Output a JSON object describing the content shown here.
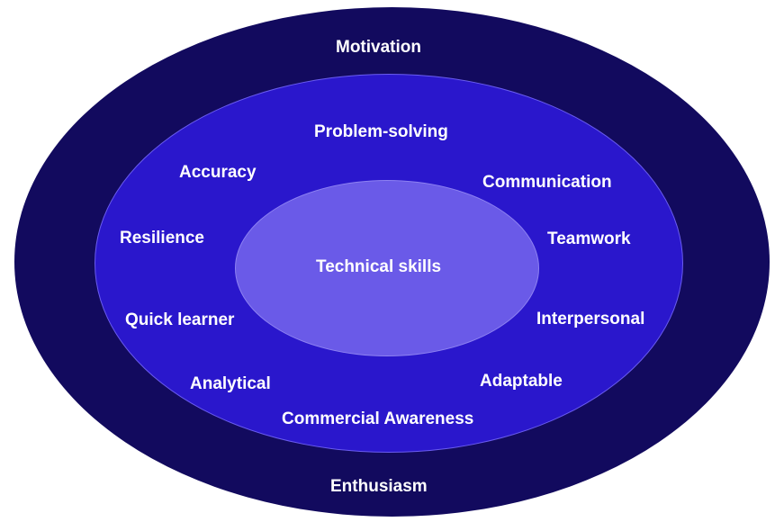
{
  "colors": {
    "outer_ring": "#120a5e",
    "middle_ring": "#2a17cc",
    "inner_core": "#6a5ae8",
    "text": "#ffffff"
  },
  "outer": {
    "top_label": "Motivation",
    "bottom_label": "Enthusiasm"
  },
  "middle": {
    "problem_solving": "Problem-solving",
    "accuracy": "Accuracy",
    "communication": "Communication",
    "resilience": "Resilience",
    "teamwork": "Teamwork",
    "quick_learner": "Quick learner",
    "interpersonal": "Interpersonal",
    "analytical": "Analytical",
    "adaptable": "Adaptable",
    "commercial_awareness": "Commercial Awareness"
  },
  "core": {
    "label": "Technical skills"
  }
}
